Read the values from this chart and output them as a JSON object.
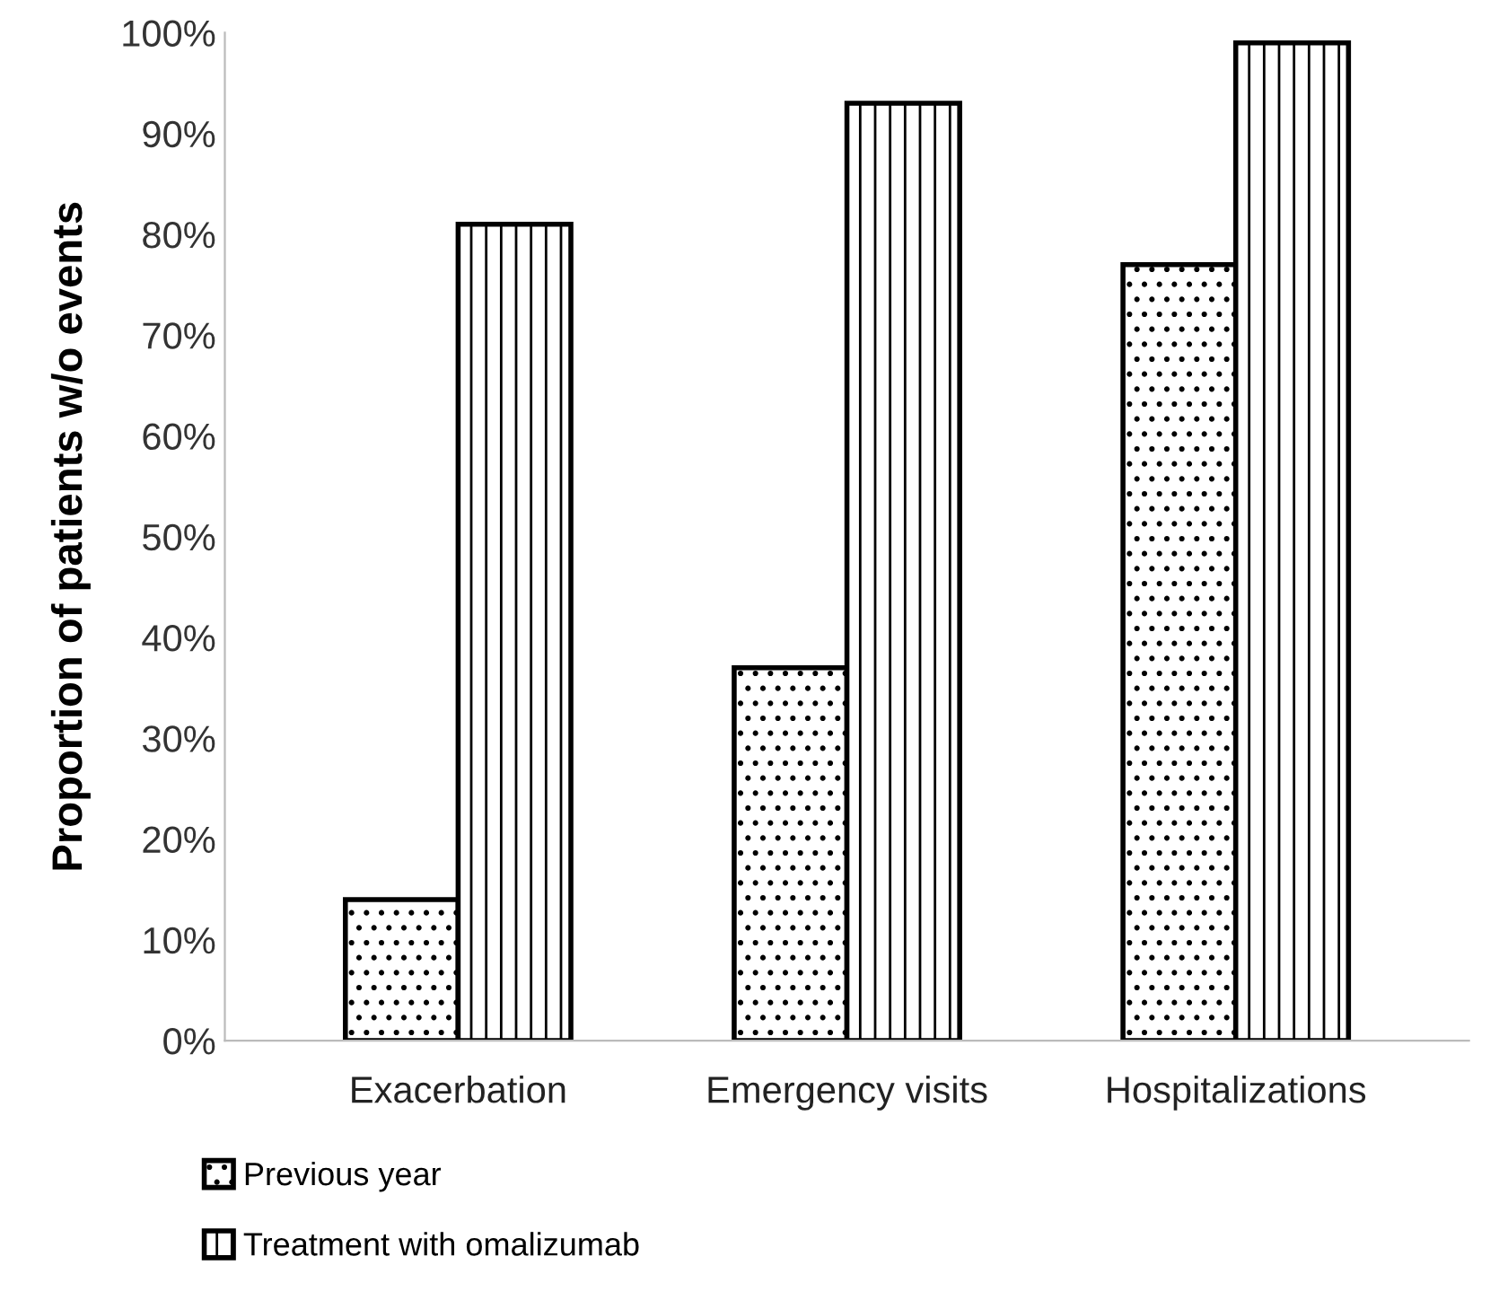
{
  "chart_data": {
    "type": "bar",
    "ylabel": "Proportion of patients w/o events",
    "categories": [
      "Exacerbation",
      "Emergency visits",
      "Hospitalizations"
    ],
    "series": [
      {
        "name": "Previous year",
        "color": "#000000",
        "values": [
          14,
          37,
          77
        ]
      },
      {
        "name": "Treatment with omalizumab",
        "color": "#000000",
        "values": [
          81,
          93,
          99
        ]
      }
    ],
    "ylim": [
      0,
      100
    ],
    "yticks": [
      {
        "value": 0,
        "label": "0%"
      },
      {
        "value": 10,
        "label": "10%"
      },
      {
        "value": 20,
        "label": "20%"
      },
      {
        "value": 30,
        "label": "30%"
      },
      {
        "value": 40,
        "label": "40%"
      },
      {
        "value": 50,
        "label": "50%"
      },
      {
        "value": 60,
        "label": "60%"
      },
      {
        "value": 70,
        "label": "70%"
      },
      {
        "value": 80,
        "label": "80%"
      },
      {
        "value": 90,
        "label": "90%"
      },
      {
        "value": 100,
        "label": "100%"
      }
    ],
    "grid": false,
    "legend": "bottom left"
  }
}
